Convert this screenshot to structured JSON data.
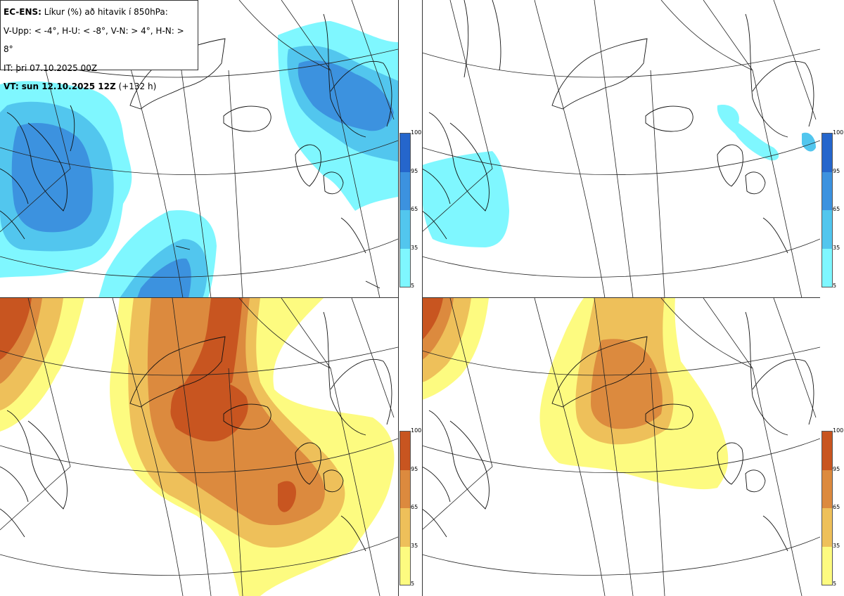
{
  "header": {
    "model": "EC-ENS:",
    "title": "Líkur (%) að hitavik í 850hPa:",
    "thresholds": "V-Upp: < -4°, H-U: < -8°, V-N: > 4°, H-N: > 8°",
    "init_time": "IT: þri 07.10.2025 00Z",
    "valid_label": "VT: sun 12.10.2025 12Z",
    "lead_time": "(+132 h)"
  },
  "colorbars": {
    "cold": {
      "colors": [
        "#7ff7ff",
        "#52c6ee",
        "#3c92df",
        "#2566cc"
      ],
      "ticks": [
        "100",
        "95",
        "65",
        "35",
        "5"
      ]
    },
    "warm": {
      "colors": [
        "#fdfb80",
        "#eec05a",
        "#dc8a3e",
        "#c85520"
      ],
      "ticks": [
        "100",
        "95",
        "65",
        "35",
        "5"
      ]
    }
  },
  "panels": [
    {
      "id": "V-Upp",
      "description": "probability anomaly < -4",
      "palette": "cold"
    },
    {
      "id": "H-U",
      "description": "probability anomaly < -8",
      "palette": "cold"
    },
    {
      "id": "V-N",
      "description": "probability anomaly > 4",
      "palette": "warm"
    },
    {
      "id": "H-N",
      "description": "probability anomaly > 8",
      "palette": "warm"
    }
  ]
}
